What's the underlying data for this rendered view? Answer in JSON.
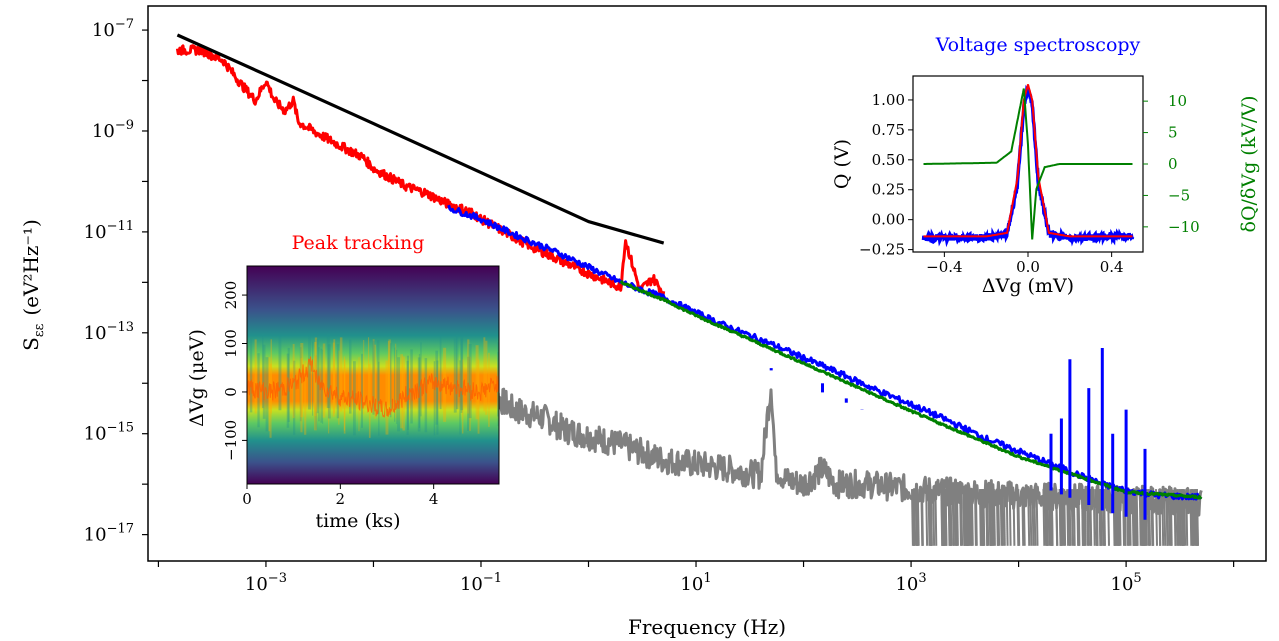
{
  "chart_data": [
    {
      "type": "line",
      "xlabel": "Frequency (Hz)",
      "ylabel_main": "S",
      "ylabel_sub": "εε",
      "ylabel_unit": "(eV²Hz⁻¹)",
      "xscale": "log",
      "yscale": "log",
      "xlim": [
        8e-05,
        2000000
      ],
      "ylim": [
        3e-18,
        3e-07
      ],
      "xticks": [
        {
          "value": 0.001,
          "base": "10",
          "exp": "−3"
        },
        {
          "value": 0.1,
          "base": "10",
          "exp": "−1"
        },
        {
          "value": 10,
          "base": "10",
          "exp": "1"
        },
        {
          "value": 1000,
          "base": "10",
          "exp": "3"
        },
        {
          "value": 100000,
          "base": "10",
          "exp": "5"
        }
      ],
      "yticks": [
        {
          "value": 1e-07,
          "base": "10",
          "exp": "−7"
        },
        {
          "value": 1e-09,
          "base": "10",
          "exp": "−9"
        },
        {
          "value": 1e-11,
          "base": "10",
          "exp": "−11"
        },
        {
          "value": 1e-13,
          "base": "10",
          "exp": "−13"
        },
        {
          "value": 1e-15,
          "base": "10",
          "exp": "−15"
        },
        {
          "value": 1e-17,
          "base": "10",
          "exp": "−17"
        }
      ],
      "series": [
        {
          "color": "#808080",
          "x": [
            0.11,
            0.2,
            0.4,
            0.6,
            1.0,
            2,
            5,
            10,
            20,
            40,
            50,
            55,
            70,
            100,
            150,
            200,
            400,
            1000,
            10000,
            100000,
            500000
          ],
          "y": [
            8e-15,
            3e-15,
            2e-15,
            1.2e-15,
            9e-16,
            6e-16,
            3e-16,
            2.5e-16,
            2e-16,
            1.5e-16,
            1e-14,
            2e-16,
            1.2e-16,
            1e-16,
            2e-16,
            1e-16,
            1e-16,
            8e-17,
            6e-17,
            5e-17,
            4.5e-17
          ]
        },
        {
          "color": "#ff0000",
          "x": [
            0.00015,
            0.00025,
            0.0004,
            0.0006,
            0.0008,
            0.001,
            0.0012,
            0.0015,
            0.0018,
            0.002,
            0.003,
            0.005,
            0.008,
            0.01,
            0.02,
            0.03,
            0.05,
            0.08,
            0.1,
            0.2,
            0.3,
            0.5,
            1,
            2,
            2.2,
            3,
            4,
            5
          ],
          "y": [
            4e-08,
            4e-08,
            2.5e-08,
            8e-09,
            4e-09,
            1e-08,
            4e-09,
            2.5e-09,
            4e-09,
            1.5e-09,
            9e-10,
            5e-10,
            3e-10,
            1.8e-10,
            8e-11,
            6e-11,
            3.5e-11,
            2.5e-11,
            1.8e-11,
            8e-12,
            5e-12,
            3e-12,
            1.5e-12,
            8e-13,
            7e-12,
            7e-13,
            1.2e-12,
            6e-13
          ]
        },
        {
          "color": "#0000ff",
          "x": [
            0.05,
            0.1,
            0.2,
            0.5,
            1,
            2,
            5,
            10,
            20,
            50,
            100,
            150,
            200,
            500,
            1000,
            2000,
            5000,
            10000,
            20000,
            30000,
            40000,
            50000,
            60000,
            80000,
            100000,
            200000,
            500000
          ],
          "y": [
            3e-11,
            1.8e-11,
            9e-12,
            4e-12,
            2e-12,
            1e-12,
            5e-13,
            2.5e-13,
            1.3e-13,
            6e-14,
            3.2e-14,
            2.2e-14,
            1.7e-14,
            7e-15,
            3.8e-15,
            2e-15,
            8e-16,
            4.5e-16,
            2.5e-16,
            1.8e-16,
            1.4e-16,
            1.2e-16,
            1e-16,
            8.5e-17,
            7.5e-17,
            6e-17,
            5.5e-17
          ]
        },
        {
          "color": "#008000",
          "x": [
            2,
            5,
            10,
            100,
            1000,
            10000,
            100000,
            500000
          ],
          "y": [
            1e-12,
            4.5e-13,
            2.2e-13,
            2.5e-14,
            2.8e-15,
            3.5e-16,
            7e-17,
            5.5e-17
          ]
        },
        {
          "color": "#000000",
          "x": [
            0.00015,
            0.001,
            0.01,
            0.1,
            1,
            5
          ],
          "y": [
            8e-08,
            1.3e-08,
            1.4e-09,
            1.5e-10,
            1.6e-11,
            6e-12
          ]
        }
      ],
      "spikes": {
        "x": [
          50,
          150,
          250,
          350,
          20000,
          25000,
          30000,
          45000,
          60000,
          75000,
          100000,
          150000
        ],
        "y": [
          2e-14,
          1e-14,
          5e-15,
          3e-15,
          1e-15,
          2e-15,
          3e-14,
          8e-15,
          5e-14,
          1e-15,
          3e-15,
          5e-16
        ]
      }
    },
    {
      "type": "line",
      "title": "Voltage spectroscopy",
      "title_color": "#0000ff",
      "xlabel": "ΔVg (mV)",
      "ylabel": "Q (V)",
      "ylabel_right": "δQ/δVg (kV/V)",
      "ylabel_right_color": "#008000",
      "xlim": [
        -0.55,
        0.55
      ],
      "ylim": [
        -0.27,
        1.2
      ],
      "ylim_right": [
        -14,
        14
      ],
      "xticks": [
        "−0.4",
        "0.0",
        "0.4"
      ],
      "yticks": [
        "1.00",
        "0.75",
        "0.50",
        "0.25",
        "0.00",
        "−0.25"
      ],
      "yticks_right": [
        "10",
        "5",
        "0",
        "−5",
        "−10"
      ],
      "series": [
        {
          "name": "",
          "color": "#0000ff",
          "x": [
            -0.5,
            -0.2,
            -0.1,
            -0.05,
            -0.02,
            0,
            0.02,
            0.05,
            0.1,
            0.2,
            0.5
          ],
          "y": [
            -0.15,
            -0.15,
            -0.12,
            0.3,
            0.95,
            1.1,
            0.95,
            0.3,
            -0.12,
            -0.15,
            -0.14
          ]
        },
        {
          "name": "",
          "color": "#ff0000",
          "x": [
            -0.5,
            -0.2,
            -0.1,
            -0.05,
            -0.02,
            0,
            0.02,
            0.05,
            0.1,
            0.2,
            0.5
          ],
          "y": [
            -0.14,
            -0.14,
            -0.11,
            0.35,
            1.0,
            1.13,
            1.0,
            0.35,
            -0.11,
            -0.14,
            -0.14
          ]
        },
        {
          "name": "",
          "color": "#008000",
          "axis": "right",
          "x": [
            -0.5,
            -0.15,
            -0.08,
            -0.05,
            -0.02,
            0.0,
            0.02,
            0.04,
            0.08,
            0.15,
            0.5
          ],
          "y": [
            0,
            0.2,
            2,
            7,
            12,
            3,
            -12,
            -4,
            -0.5,
            0,
            0
          ]
        }
      ]
    },
    {
      "type": "heatmap",
      "title": "Peak tracking",
      "title_color": "#ff0000",
      "xlabel": "time (ks)",
      "ylabel": "ΔVg (μeV)",
      "xlim": [
        0,
        5.4
      ],
      "ylim": [
        -190,
        260
      ],
      "xticks": [
        "0",
        "2",
        "4"
      ],
      "yticks": [
        "200",
        "100",
        "0",
        "−100"
      ],
      "peak_trace": {
        "color": "#ff8c00",
        "x": [
          0,
          0.5,
          1,
          1.4,
          1.5,
          2,
          2.5,
          3,
          3.5,
          4,
          4.5,
          5,
          5.4
        ],
        "y": [
          10,
          0,
          15,
          60,
          20,
          -10,
          -20,
          -40,
          0,
          20,
          10,
          0,
          20
        ]
      }
    }
  ]
}
